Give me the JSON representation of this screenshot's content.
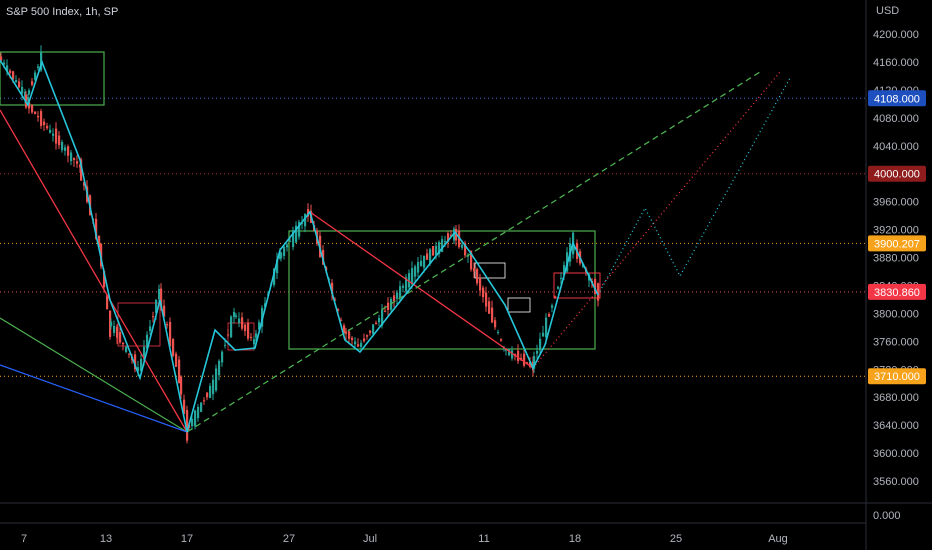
{
  "header": {
    "title": "S&P 500 Index, 1h, SP"
  },
  "price_axis": {
    "currency": "USD",
    "ticks": [
      "4200.000",
      "4160.000",
      "4120.000",
      "4080.000",
      "4040.000",
      "4000.000",
      "3960.000",
      "3920.000",
      "3880.000",
      "3840.000",
      "3800.000",
      "3760.000",
      "3720.000",
      "3680.000",
      "3640.000",
      "3600.000",
      "3560.000"
    ],
    "lower_pane_tick": "0.000"
  },
  "time_axis": {
    "ticks": [
      "7",
      "13",
      "17",
      "27",
      "Jul",
      "11",
      "18",
      "25",
      "Aug"
    ]
  },
  "price_labels": [
    {
      "text": "4108.000",
      "color": "#1e4fbf"
    },
    {
      "text": "4000.000",
      "color": "#8e1c1c"
    },
    {
      "text": "3900.207",
      "color": "#f7a21b"
    },
    {
      "text": "3830.860",
      "color": "#f23645"
    },
    {
      "text": "3710.000",
      "color": "#f7a21b"
    }
  ],
  "colors": {
    "up": "#26a69a",
    "down": "#ef5350",
    "bg": "#000000",
    "zigzag": "#26c6da",
    "box": "#4caf50",
    "trend_red": "#f23645"
  },
  "chart_data": {
    "type": "candlestick",
    "title": "S&P 500 Index, 1h, SP",
    "ylabel": "USD",
    "ylim": [
      3535,
      4230
    ],
    "x": [
      "7",
      "13",
      "17",
      "27",
      "Jul",
      "11",
      "18",
      "25",
      "Aug"
    ],
    "price_points": [
      4168,
      4110,
      4165,
      4105,
      4012,
      3900,
      3790,
      3718,
      3830,
      3712,
      3633,
      3700,
      3800,
      3760,
      3880,
      3945,
      3775,
      3752,
      3870,
      3915,
      3880,
      3750,
      3724,
      3775,
      3900,
      3830
    ],
    "levels": [
      4108.0,
      4000.0,
      3900.207,
      3830.86,
      3710.0
    ]
  }
}
